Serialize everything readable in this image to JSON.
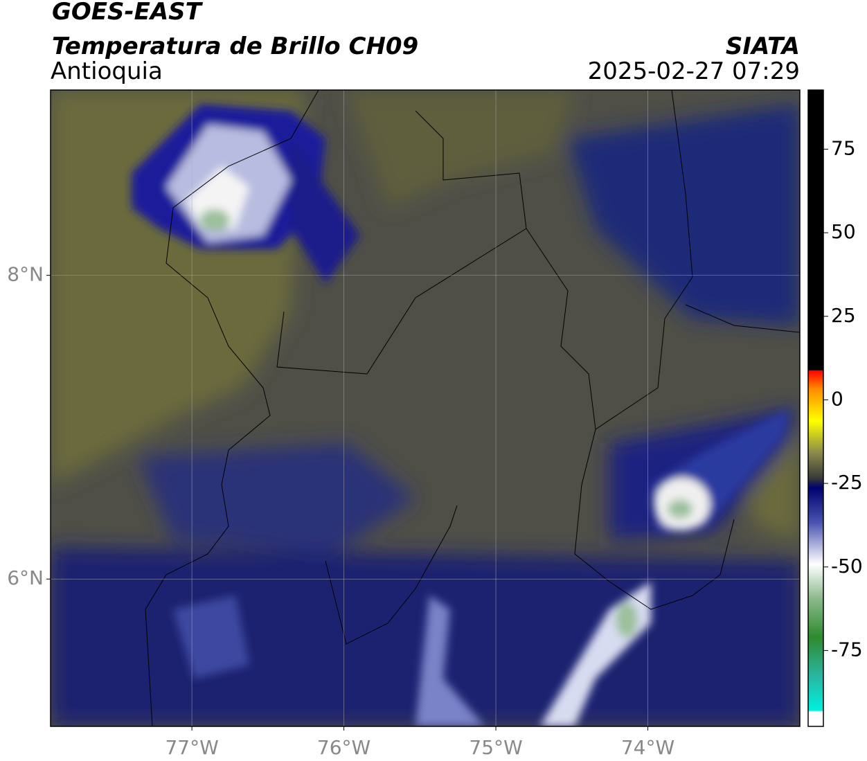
{
  "header": {
    "satellite": "GOES-EAST",
    "product": "Temperatura de Brillo CH09",
    "region": "Antioquia",
    "agency": "SIATA",
    "datetime": "2025-02-27 07:29"
  },
  "map": {
    "xlim": [
      -77.93,
      -73.0
    ],
    "ylim": [
      5.03,
      9.22
    ],
    "grid": true,
    "xticks": [
      {
        "value": -77,
        "label": "77°W"
      },
      {
        "value": -76,
        "label": "76°W"
      },
      {
        "value": -75,
        "label": "75°W"
      },
      {
        "value": -74,
        "label": "74°W"
      }
    ],
    "yticks": [
      {
        "value": 8,
        "label": "8°N"
      },
      {
        "value": 6,
        "label": "6°N"
      }
    ]
  },
  "colorbar": {
    "lim": [
      -97.7,
      92.7
    ],
    "ticks": [
      75,
      50,
      25,
      0,
      -25,
      -50,
      -75
    ]
  }
}
